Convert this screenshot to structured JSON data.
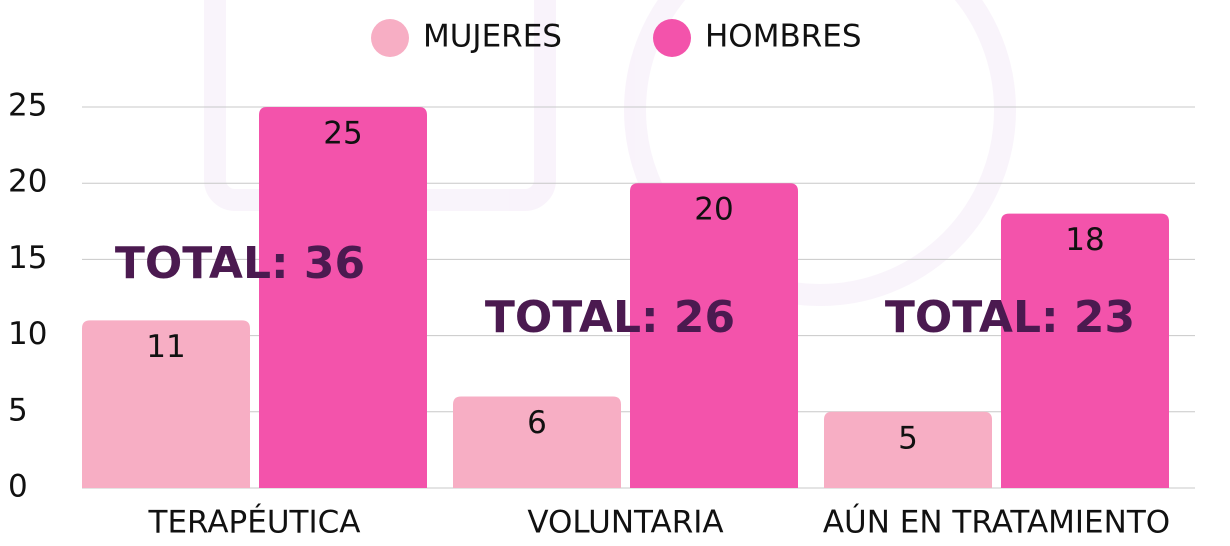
{
  "chart_data": {
    "type": "bar",
    "categories": [
      "TERAPÉUTICA",
      "VOLUNTARIA",
      "AÚN EN TRATAMIENTO"
    ],
    "series": [
      {
        "name": "MUJERES",
        "color": "#f7aec4",
        "values": [
          11,
          6,
          5
        ]
      },
      {
        "name": "HOMBRES",
        "color": "#f353ab",
        "values": [
          25,
          20,
          18
        ]
      }
    ],
    "annotations": [
      "TOTAL: 36",
      "TOTAL: 26",
      "TOTAL: 23"
    ],
    "ylim": [
      0,
      25
    ],
    "yticks": [
      0,
      5,
      10,
      15,
      20,
      25
    ],
    "grid": true
  }
}
